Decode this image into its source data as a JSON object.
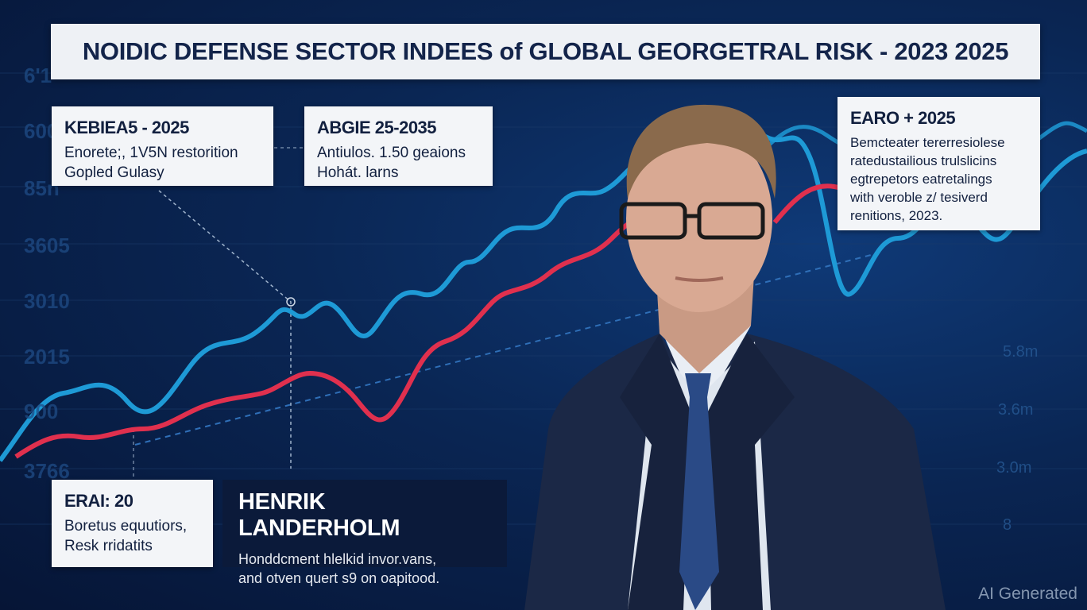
{
  "title": "NOIDIC DEFENSE SECTOR INDEES of GLOBAL GEORGETRAL RISK - 2023 2025",
  "left_axis_labels": [
    "6'1",
    "600",
    "85n",
    "3605",
    "3010",
    "2015",
    "900",
    "3766"
  ],
  "right_axis_labels": [
    "5.8m",
    "3.6m",
    "3.0m",
    "8"
  ],
  "cards": [
    {
      "heading": "KEBIEA5 - 2025",
      "lines": [
        "Enorete;, 1V5N restorition",
        "Gopled Gulasy"
      ]
    },
    {
      "heading": "ABGIE 25-2035",
      "lines": [
        "Antiulos. 1.50 geaions",
        "Hohát. larns"
      ]
    },
    {
      "heading": "EARO + 2025",
      "lines": [
        "Bemcteater tererresiolese",
        "ratedustailious trulslicins",
        "egtrepetors eatretalings",
        "with veroble z/ tesiverd",
        "renitions, 2023."
      ]
    },
    {
      "heading": "ERAI: 20",
      "lines": [
        "Boretus equutiors,",
        "Resk rridatits"
      ]
    }
  ],
  "lower_third": {
    "name": "HENRIK LANDERHOLM",
    "lines": [
      "Honddcment hlelkid invor.vans,",
      "and otven quert s9 on oapitood."
    ]
  },
  "watermark": "AI Generated",
  "colors": {
    "blue_line": "#1e9ad6",
    "red_line": "#e0304e",
    "background": "#0a2654"
  }
}
